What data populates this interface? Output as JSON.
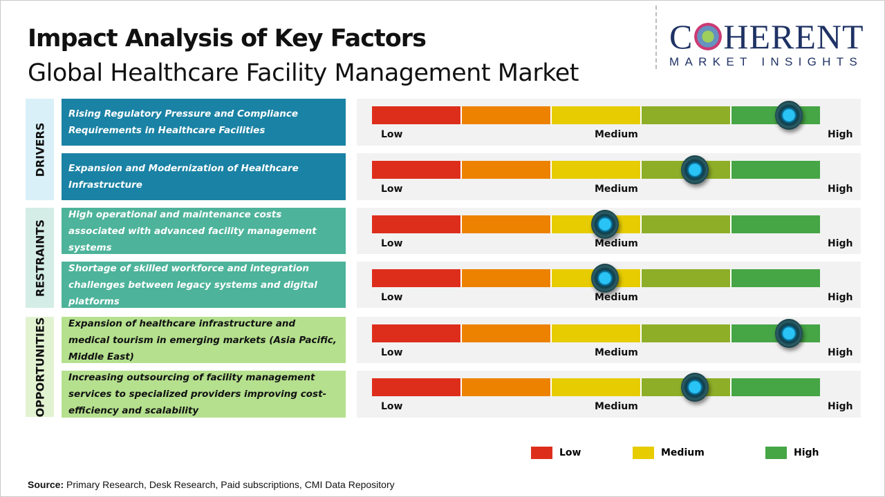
{
  "title": "Impact Analysis of Key Factors",
  "subtitle": "Global Healthcare Facility Management Market",
  "logo": {
    "main": "COHERENT",
    "sub": "MARKET INSIGHTS"
  },
  "scale_labels": {
    "low": "Low",
    "medium": "Medium",
    "high": "High"
  },
  "segment_colors": [
    "#dd2e1c",
    "#ec8200",
    "#e6cc00",
    "#8eae28",
    "#46a545"
  ],
  "categories": {
    "drivers": "DRIVERS",
    "restraints": "RESTRAINTS",
    "opportunities": "OPPORTUNITIES"
  },
  "colors": {
    "drivers": "#1a82a4",
    "restraints": "#4db39a",
    "opportunities": "#b5e08e"
  },
  "chart_data": {
    "type": "gauge",
    "scale": [
      "Low",
      "Medium",
      "High"
    ],
    "factors": [
      {
        "category": "DRIVERS",
        "text": "Rising Regulatory Pressure and Compliance Requirements in Healthcare Facilities",
        "impact": 0.93
      },
      {
        "category": "DRIVERS",
        "text": "Expansion and Modernization of Healthcare Infrastructure",
        "impact": 0.72
      },
      {
        "category": "RESTRAINTS",
        "text": "High operational and maintenance costs associated with advanced facility management systems",
        "impact": 0.52
      },
      {
        "category": "RESTRAINTS",
        "text": "Shortage of skilled workforce and integration challenges between legacy systems and digital platforms",
        "impact": 0.52
      },
      {
        "category": "OPPORTUNITIES",
        "text": "Expansion of healthcare infrastructure and medical tourism in emerging markets (Asia Pacific, Middle East)",
        "impact": 0.93
      },
      {
        "category": "OPPORTUNITIES",
        "text": "Increasing outsourcing of facility management services to specialized providers improving cost-efficiency and scalability",
        "impact": 0.72
      }
    ]
  },
  "legend": [
    {
      "label": "Low",
      "color": "#dd2e1c"
    },
    {
      "label": "Medium",
      "color": "#e6cc00"
    },
    {
      "label": "High",
      "color": "#46a545"
    }
  ],
  "source": {
    "label": "Source:",
    "text": " Primary Research, Desk Research, Paid subscriptions, CMI Data Repository"
  }
}
